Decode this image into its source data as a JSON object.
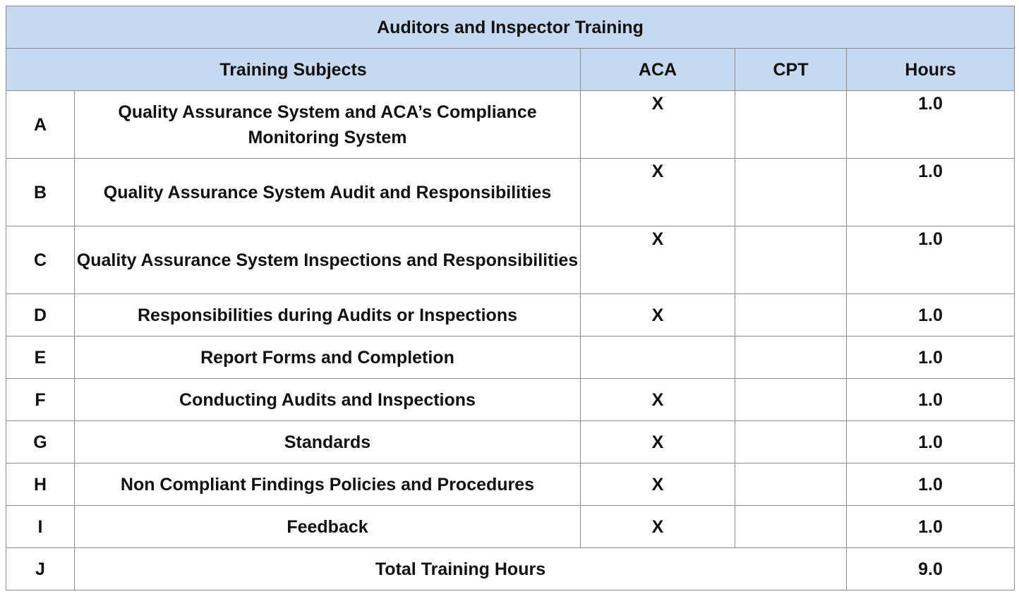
{
  "table": {
    "title": "Auditors and Inspector Training",
    "headers": {
      "subjects": "Training Subjects",
      "aca": "ACA",
      "cpt": "CPT",
      "hours": "Hours"
    },
    "rows": [
      {
        "letter": "A",
        "subject": "Quality Assurance System and ACA’s Compliance Monitoring System",
        "aca": "X",
        "cpt": "",
        "hours": "1.0"
      },
      {
        "letter": "B",
        "subject": "Quality Assurance System Audit and Responsibilities",
        "aca": "X",
        "cpt": "",
        "hours": "1.0"
      },
      {
        "letter": "C",
        "subject": "Quality Assurance System Inspections and Responsibilities",
        "aca": "X",
        "cpt": "",
        "hours": "1.0"
      },
      {
        "letter": "D",
        "subject": "Responsibilities during Audits or Inspections",
        "aca": "X",
        "cpt": "",
        "hours": "1.0"
      },
      {
        "letter": "E",
        "subject": "Report Forms and Completion",
        "aca": "",
        "cpt": "",
        "hours": "1.0"
      },
      {
        "letter": "F",
        "subject": "Conducting Audits and Inspections",
        "aca": "X",
        "cpt": "",
        "hours": "1.0"
      },
      {
        "letter": "G",
        "subject": "Standards",
        "aca": "X",
        "cpt": "",
        "hours": "1.0"
      },
      {
        "letter": "H",
        "subject": "Non Compliant Findings Policies and Procedures",
        "aca": "X",
        "cpt": "",
        "hours": "1.0"
      },
      {
        "letter": "I",
        "subject": "Feedback",
        "aca": "X",
        "cpt": "",
        "hours": "1.0"
      }
    ],
    "total": {
      "letter": "J",
      "label": "Total Training Hours",
      "hours": "9.0"
    }
  },
  "colors": {
    "header_background": "#c6d9f0",
    "border": "#8a8a8a"
  }
}
